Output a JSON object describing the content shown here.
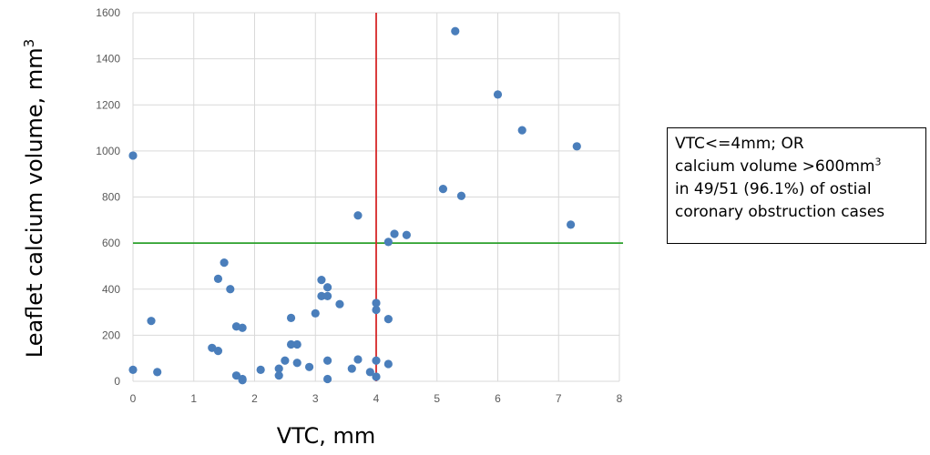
{
  "chart_data": {
    "type": "scatter",
    "xlabel": "VTC, mm",
    "ylabel": "Leaflet calcium volume, mm",
    "ylabel_sup": "3",
    "xlim": [
      0,
      8
    ],
    "ylim": [
      0,
      1600
    ],
    "x_ticks": [
      "0",
      "1",
      "2",
      "3",
      "4",
      "5",
      "6",
      "7",
      "8"
    ],
    "y_ticks": [
      "0",
      "200",
      "400",
      "600",
      "800",
      "1000",
      "1200",
      "1400",
      "1600"
    ],
    "grid": true,
    "marker_color": "#4a7ebb",
    "vline": {
      "x": 4,
      "color": "#d62728"
    },
    "hline": {
      "y": 600,
      "color": "#2ca02c"
    },
    "points": [
      [
        0,
        980
      ],
      [
        0,
        50
      ],
      [
        0.3,
        262
      ],
      [
        0.4,
        40
      ],
      [
        1.3,
        145
      ],
      [
        1.4,
        132
      ],
      [
        1.4,
        445
      ],
      [
        1.5,
        515
      ],
      [
        1.6,
        400
      ],
      [
        1.7,
        238
      ],
      [
        1.7,
        25
      ],
      [
        1.8,
        232
      ],
      [
        1.8,
        10
      ],
      [
        1.8,
        5
      ],
      [
        2.1,
        50
      ],
      [
        2.4,
        55
      ],
      [
        2.4,
        25
      ],
      [
        2.5,
        90
      ],
      [
        2.6,
        275
      ],
      [
        2.6,
        160
      ],
      [
        2.7,
        160
      ],
      [
        2.7,
        80
      ],
      [
        2.9,
        62
      ],
      [
        3.0,
        295
      ],
      [
        3.1,
        440
      ],
      [
        3.1,
        370
      ],
      [
        3.2,
        408
      ],
      [
        3.2,
        370
      ],
      [
        3.2,
        90
      ],
      [
        3.2,
        10
      ],
      [
        3.4,
        335
      ],
      [
        3.6,
        55
      ],
      [
        3.7,
        95
      ],
      [
        3.7,
        720
      ],
      [
        3.9,
        40
      ],
      [
        4.0,
        340
      ],
      [
        4.0,
        310
      ],
      [
        4.0,
        90
      ],
      [
        4.0,
        20
      ],
      [
        4.2,
        605
      ],
      [
        4.2,
        270
      ],
      [
        4.2,
        75
      ],
      [
        4.3,
        640
      ],
      [
        4.5,
        635
      ],
      [
        5.1,
        835
      ],
      [
        5.3,
        1520
      ],
      [
        5.4,
        805
      ],
      [
        6.0,
        1245
      ],
      [
        6.4,
        1090
      ],
      [
        7.2,
        680
      ],
      [
        7.3,
        1020
      ]
    ]
  },
  "annotation": {
    "line1": "VTC<=4mm; OR",
    "line2": "calcium volume >600mm",
    "line2_sup": "3",
    "line3": "in 49/51 (96.1%) of ostial",
    "line4": "coronary obstruction cases"
  }
}
